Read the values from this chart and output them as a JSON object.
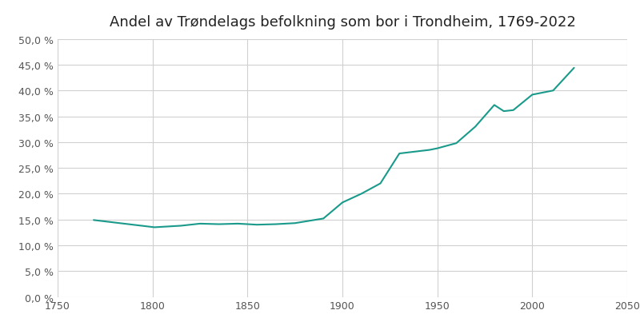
{
  "title": "Andel av Trøndelags befolkning som bor i Trondheim, 1769-2022",
  "line_color": "#1a9a8a",
  "background_color": "#ffffff",
  "grid_color": "#d0d0d0",
  "xlim": [
    1750,
    2050
  ],
  "ylim": [
    0.0,
    0.5
  ],
  "yticks": [
    0.0,
    0.05,
    0.1,
    0.15,
    0.2,
    0.25,
    0.3,
    0.35,
    0.4,
    0.45,
    0.5
  ],
  "xticks": [
    1750,
    1800,
    1850,
    1900,
    1950,
    2000,
    2050
  ],
  "years": [
    1769,
    1801,
    1815,
    1825,
    1835,
    1845,
    1855,
    1865,
    1875,
    1890,
    1900,
    1910,
    1920,
    1930,
    1946,
    1950,
    1960,
    1970,
    1980,
    1985,
    1990,
    2000,
    2011,
    2022
  ],
  "values": [
    0.149,
    0.135,
    0.138,
    0.142,
    0.141,
    0.142,
    0.14,
    0.141,
    0.143,
    0.152,
    0.183,
    0.2,
    0.22,
    0.278,
    0.285,
    0.288,
    0.298,
    0.33,
    0.372,
    0.36,
    0.362,
    0.392,
    0.4,
    0.444
  ]
}
